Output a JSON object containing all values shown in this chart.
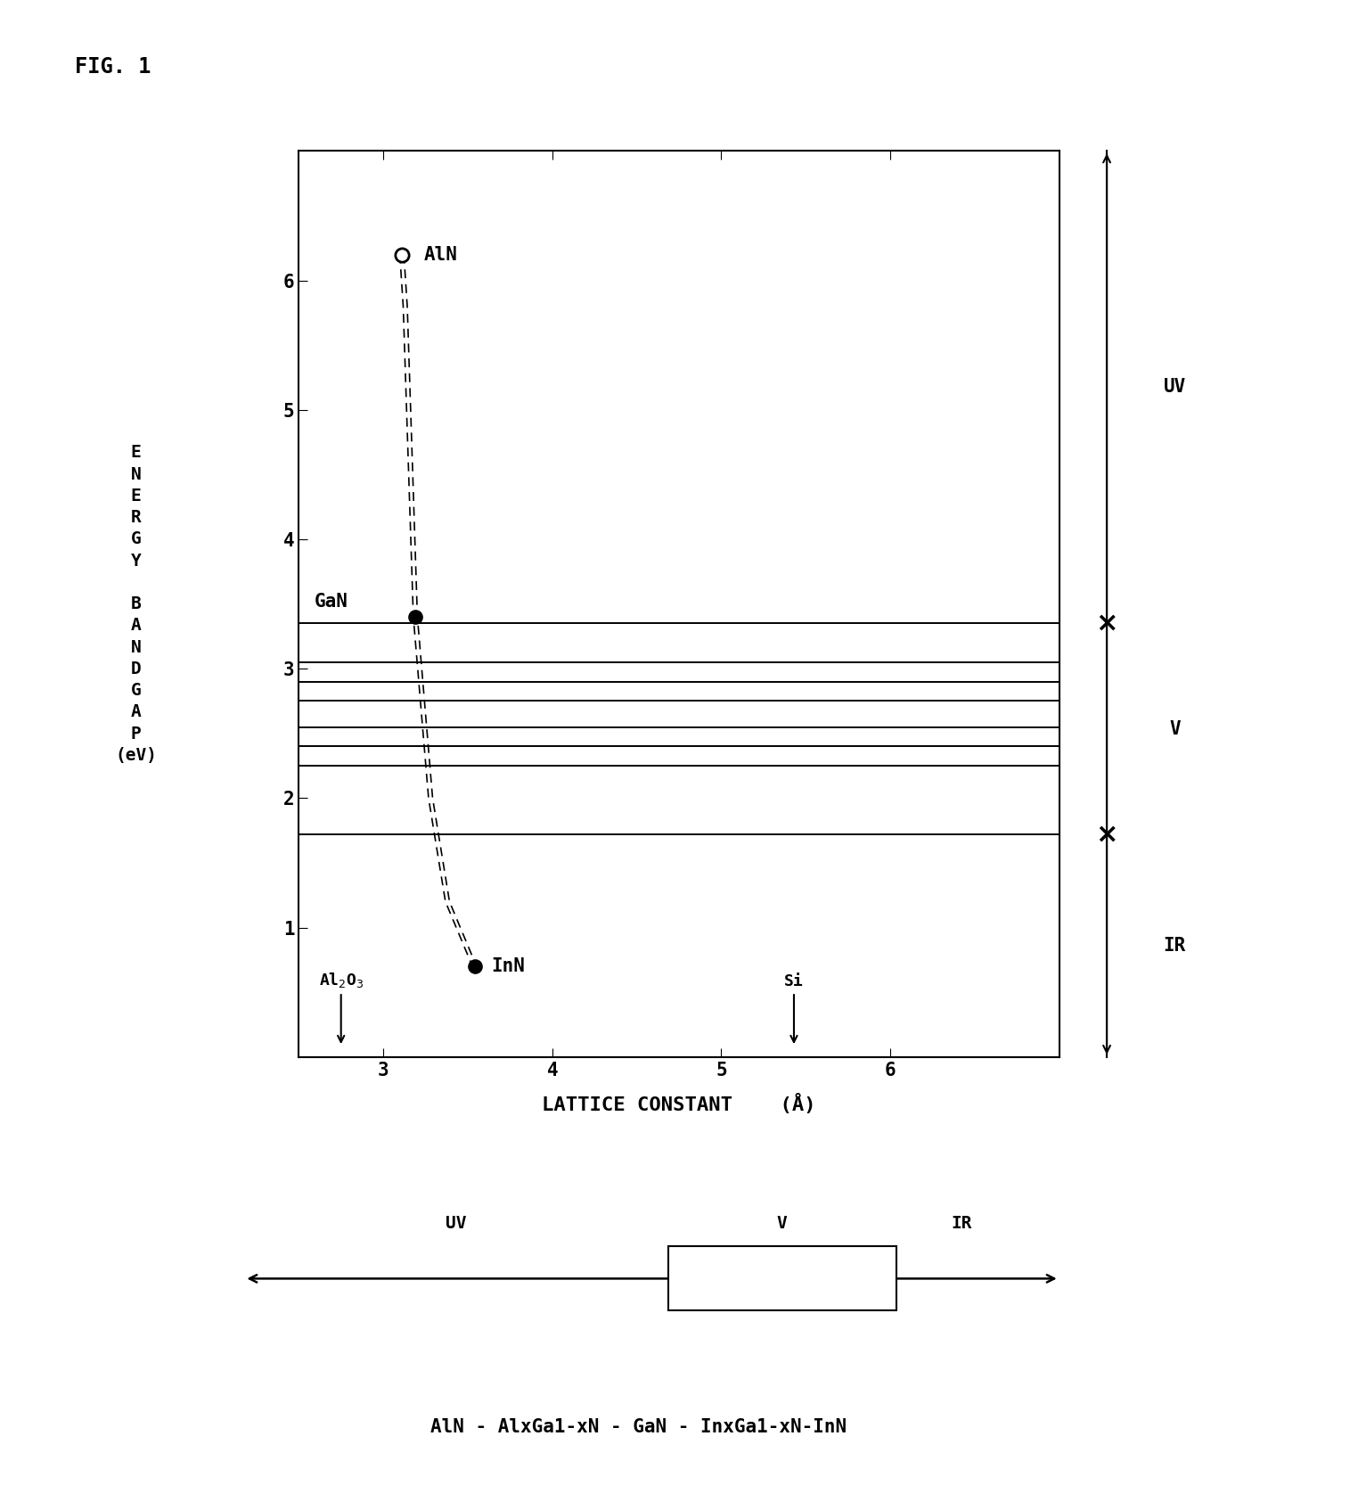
{
  "fig_label": "FIG. 1",
  "xlabel": "LATTICE CONSTANT    (Å)",
  "ylabel_lines": [
    "E",
    "N",
    "E",
    "R",
    "G",
    "Y",
    " ",
    "B",
    "A",
    "N",
    "D",
    "G",
    "A",
    "P",
    "(eV)"
  ],
  "xlim": [
    2.5,
    7.0
  ],
  "ylim": [
    0.0,
    7.0
  ],
  "xticks": [
    3,
    4,
    5,
    6
  ],
  "yticks": [
    1,
    2,
    3,
    4,
    5,
    6
  ],
  "AlN_x": 3.11,
  "AlN_y": 6.2,
  "GaN_x": 3.19,
  "GaN_y": 3.4,
  "InN_x": 3.54,
  "InN_y": 0.7,
  "curve_x": [
    3.11,
    3.13,
    3.16,
    3.19,
    3.28,
    3.38,
    3.54
  ],
  "curve_y": [
    6.2,
    5.8,
    4.6,
    3.4,
    2.0,
    1.2,
    0.7
  ],
  "horizontal_lines": [
    3.35,
    3.05,
    2.9,
    2.75,
    2.55,
    2.4,
    2.25,
    1.72
  ],
  "al2o3_x": 2.75,
  "si_x": 5.43,
  "uv_boundary": 3.35,
  "v_boundary": 1.72,
  "bottom_text": "AlN - AlxGa1-xN - GaN - InxGa1-xN-InN",
  "background_color": "#ffffff"
}
